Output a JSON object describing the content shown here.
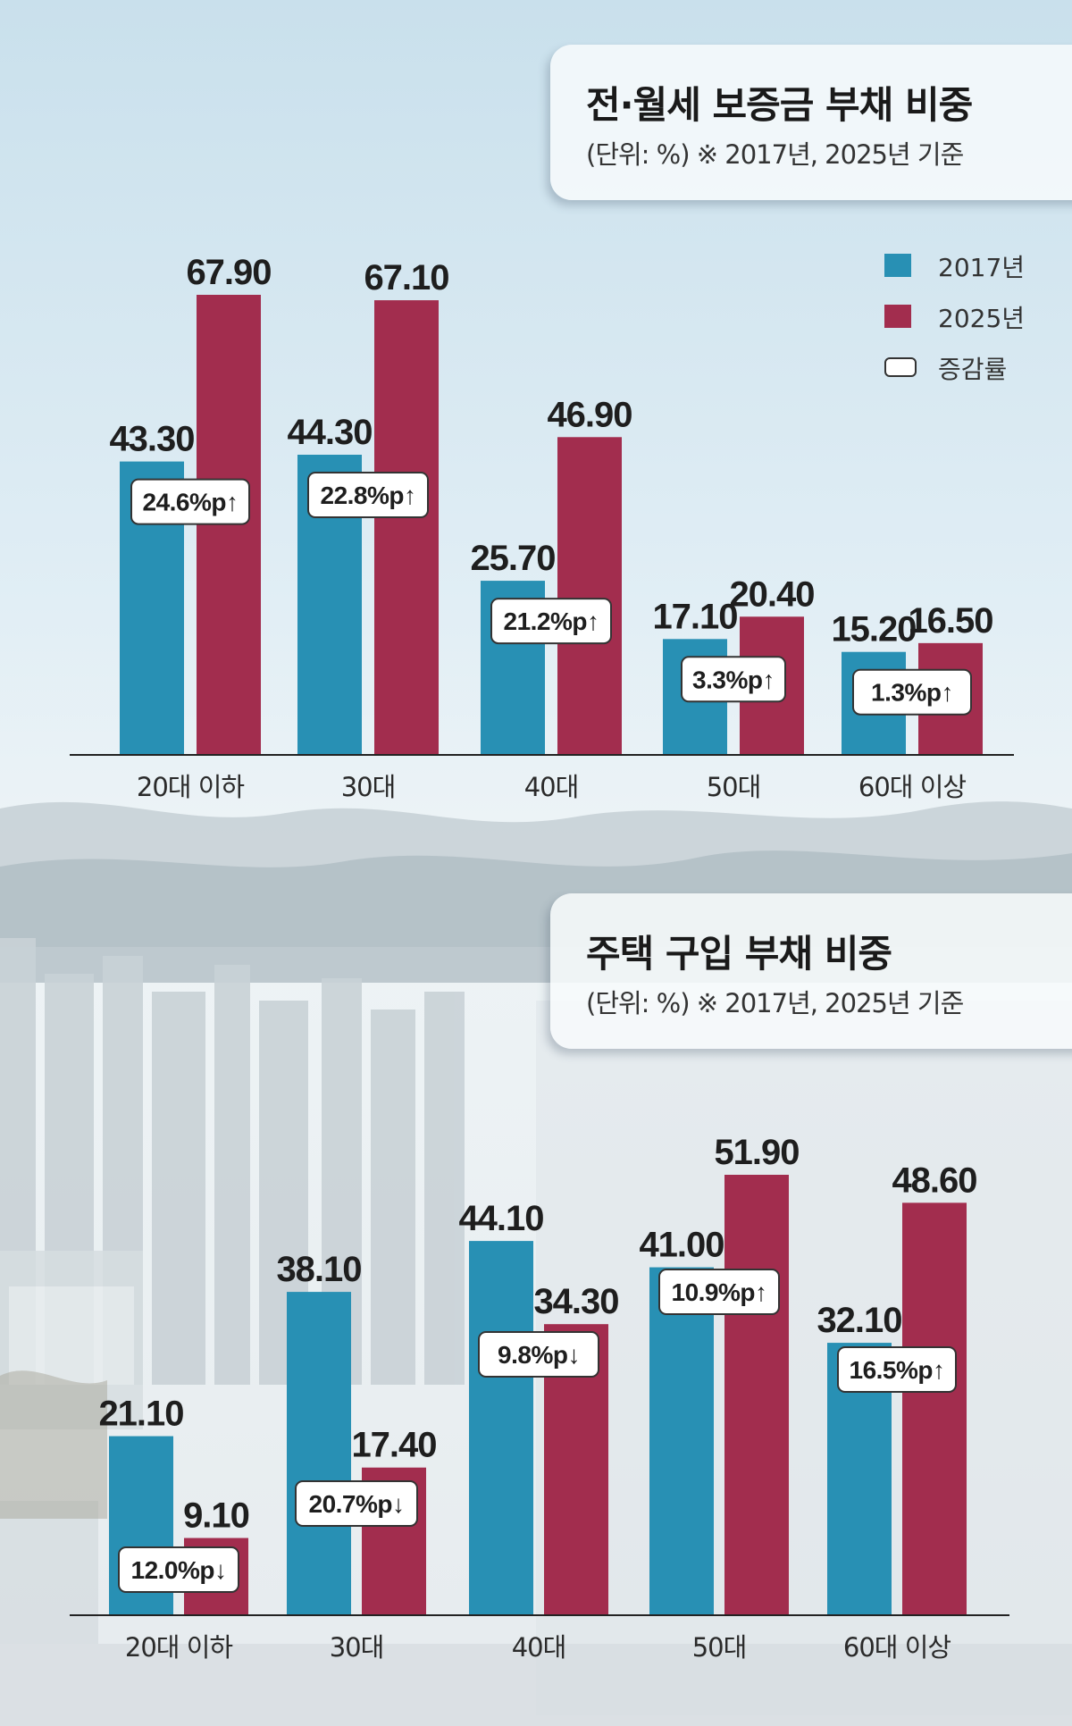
{
  "colors": {
    "series_2017": "#2890b4",
    "series_2025": "#a22d4e",
    "change_box": "#ffffff"
  },
  "legend": {
    "items": [
      {
        "label": "2017년",
        "swatch": "series_2017"
      },
      {
        "label": "2025년",
        "swatch": "series_2025"
      },
      {
        "label": "증감률",
        "swatch": "change_box"
      }
    ]
  },
  "chart_data": [
    {
      "type": "bar",
      "title": "전·월세 보증금 부채 비중",
      "subtitle": "(단위: %) ※ 2017년, 2025년 기준",
      "categories": [
        "20대 이하",
        "30대",
        "40대",
        "50대",
        "60대 이상"
      ],
      "series": [
        {
          "name": "2017년",
          "values": [
            43.3,
            44.3,
            25.7,
            17.1,
            15.2
          ],
          "labels": [
            "43.30",
            "44.30",
            "25.70",
            "17.10",
            "15.20"
          ]
        },
        {
          "name": "2025년",
          "values": [
            67.9,
            67.1,
            46.9,
            20.4,
            16.5
          ],
          "labels": [
            "67.90",
            "67.10",
            "46.90",
            "20.40",
            "16.50"
          ]
        }
      ],
      "changes": [
        "24.6%p↑",
        "22.8%p↑",
        "21.2%p↑",
        "3.3%p↑",
        "1.3%p↑"
      ],
      "ylim": [
        0,
        67.9
      ],
      "legend": "top-right",
      "grid": false
    },
    {
      "type": "bar",
      "title": "주택 구입 부채 비중",
      "subtitle": "(단위: %) ※ 2017년, 2025년 기준",
      "categories": [
        "20대 이하",
        "30대",
        "40대",
        "50대",
        "60대 이상"
      ],
      "series": [
        {
          "name": "2017년",
          "values": [
            21.1,
            38.1,
            44.1,
            41.0,
            32.1
          ],
          "labels": [
            "21.10",
            "38.10",
            "44.10",
            "41.00",
            "32.10"
          ]
        },
        {
          "name": "2025년",
          "values": [
            9.1,
            17.4,
            34.3,
            51.9,
            48.6
          ],
          "labels": [
            "9.10",
            "17.40",
            "34.30",
            "51.90",
            "48.60"
          ]
        }
      ],
      "changes": [
        "12.0%p↓",
        "20.7%p↓",
        "9.8%p↓",
        "10.9%p↑",
        "16.5%p↑"
      ],
      "ylim": [
        0,
        51.9
      ],
      "grid": false
    }
  ]
}
